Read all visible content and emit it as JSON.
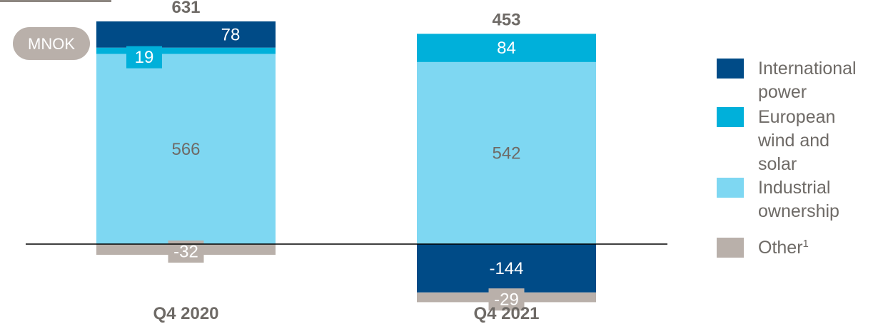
{
  "chart_data": {
    "type": "bar",
    "stacked": true,
    "unit_badge": "MNOK",
    "categories": [
      "Q4 2020",
      "Q4 2021"
    ],
    "totals": [
      631,
      453
    ],
    "series": [
      {
        "name": "International power",
        "color": "#004b87",
        "values": [
          78,
          -144
        ]
      },
      {
        "name": "European wind and solar",
        "color": "#00b0da",
        "values": [
          19,
          84
        ]
      },
      {
        "name": "Industrial ownership",
        "color": "#7ed7f2",
        "values": [
          566,
          542
        ]
      },
      {
        "name": "Other",
        "footnote": "1",
        "color": "#b9b0aa",
        "values": [
          -32,
          -29
        ]
      }
    ],
    "legend_position": "right",
    "grid": false
  }
}
